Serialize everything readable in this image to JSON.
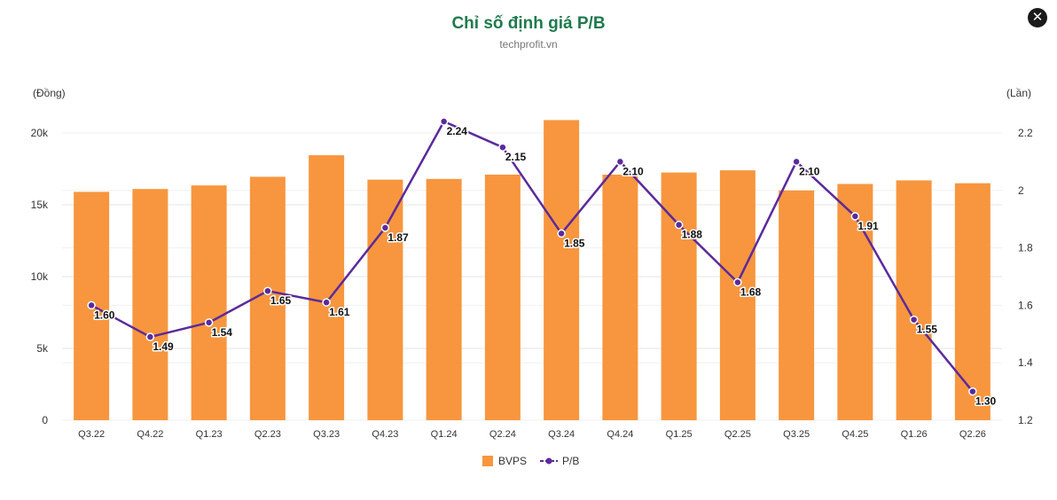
{
  "header": {
    "title": "Chỉ số định giá P/B",
    "subtitle": "techprofit.vn",
    "close_icon": "close-icon"
  },
  "colors": {
    "title": "#1f7a4d",
    "bar": "#f7963e",
    "line": "#5b2a9c",
    "grid": "#e6e6e6"
  },
  "chart_data": {
    "type": "bar",
    "categories": [
      "Q3.22",
      "Q4.22",
      "Q1.23",
      "Q2.23",
      "Q3.23",
      "Q4.23",
      "Q1.24",
      "Q2.24",
      "Q3.24",
      "Q4.24",
      "Q1.25",
      "Q2.25",
      "Q3.25",
      "Q4.25",
      "Q1.26",
      "Q2.26"
    ],
    "series": [
      {
        "name": "BVPS",
        "type": "bar",
        "axis": "left",
        "values": [
          15900,
          16100,
          16350,
          16950,
          18450,
          16750,
          16800,
          17100,
          20900,
          17100,
          17250,
          17400,
          16000,
          16450,
          16700,
          16500
        ]
      },
      {
        "name": "P/B",
        "type": "line",
        "axis": "right",
        "values": [
          1.6,
          1.49,
          1.54,
          1.65,
          1.61,
          1.87,
          2.24,
          2.15,
          1.85,
          2.1,
          1.88,
          1.68,
          2.1,
          1.91,
          1.55,
          1.3
        ]
      }
    ],
    "y_left": {
      "unit": "(Đồng)",
      "range": [
        0,
        20000
      ],
      "ticks": [
        0,
        5000,
        10000,
        15000,
        20000
      ],
      "tick_labels": [
        "0",
        "5k",
        "10k",
        "15k",
        "20k"
      ]
    },
    "y_right": {
      "unit": "(Lần)",
      "range": [
        1.2,
        2.2
      ],
      "ticks": [
        1.2,
        1.4,
        1.6,
        1.8,
        2.0,
        2.2
      ],
      "tick_labels": [
        "1.2",
        "1.4",
        "1.6",
        "1.8",
        "2",
        "2.2"
      ]
    },
    "data_labels": [
      "1.60",
      "1.49",
      "1.54",
      "1.65",
      "1.61",
      "1.87",
      "2.24",
      "2.15",
      "1.85",
      "2.10",
      "1.88",
      "1.68",
      "2.10",
      "1.91",
      "1.55",
      "1.30"
    ],
    "grid": true,
    "legend": {
      "position": "bottom",
      "items": [
        "BVPS",
        "P/B"
      ]
    }
  }
}
